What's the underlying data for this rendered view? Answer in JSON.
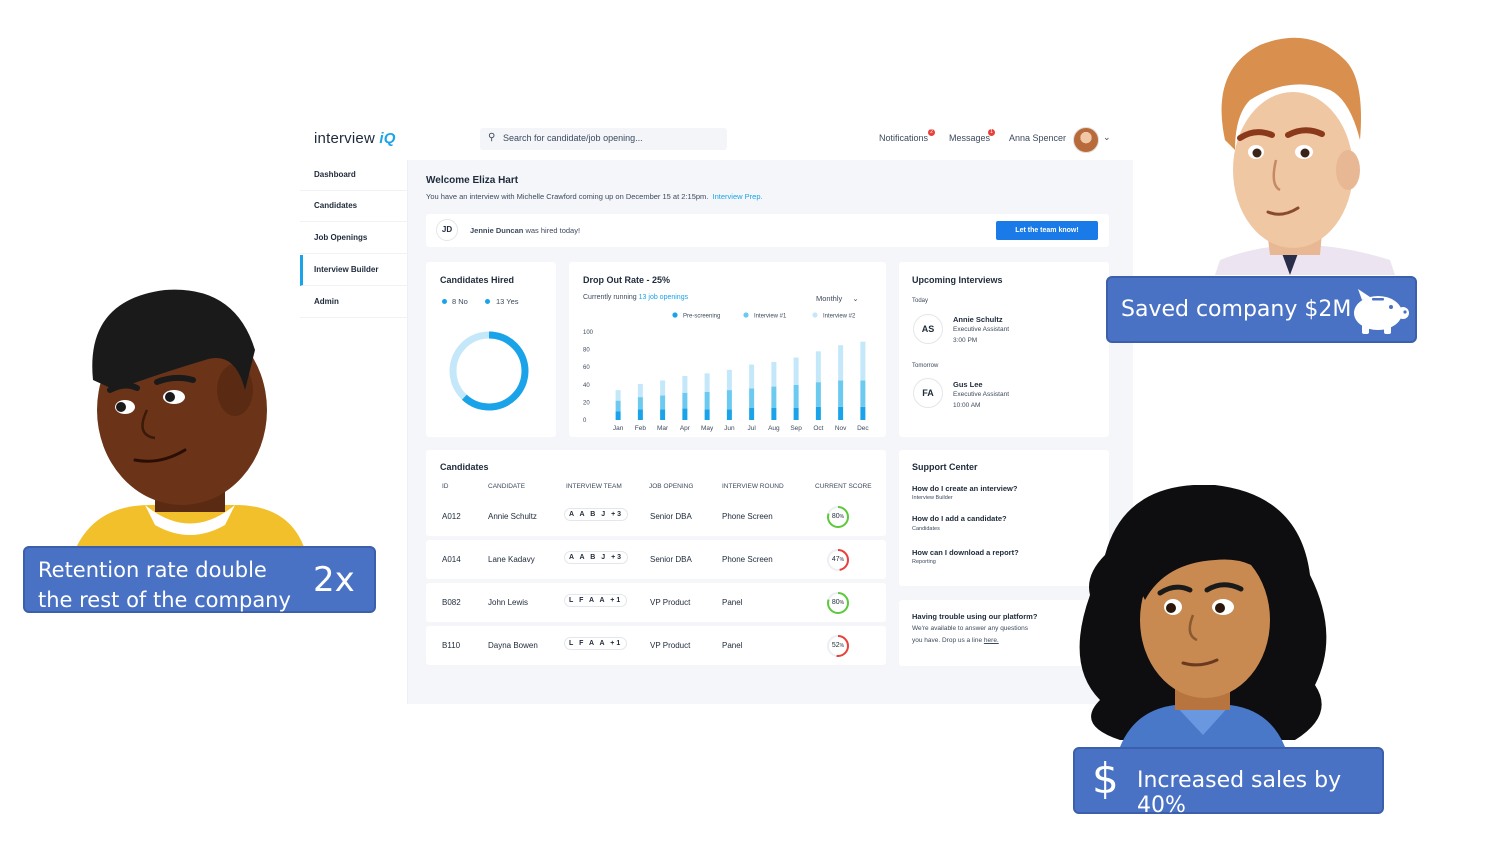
{
  "app": {
    "logo_text": "interview",
    "logo_accent": "iQ",
    "search_placeholder": "Search for candidate/job opening...",
    "notifications_label": "Notifications",
    "notifications_count": "2",
    "messages_label": "Messages",
    "messages_count": "1",
    "user_name": "Anna Spencer"
  },
  "sidebar": {
    "items": [
      {
        "label": "Dashboard",
        "active": false
      },
      {
        "label": "Candidates",
        "active": false
      },
      {
        "label": "Job Openings",
        "active": false
      },
      {
        "label": "Interview Builder",
        "active": true
      },
      {
        "label": "Admin",
        "active": false
      }
    ]
  },
  "welcome": {
    "title": "Welcome Eliza Hart",
    "message": "You have an interview with Michelle Crawford coming up on December 15 at 2:15pm.",
    "link": "Interview Prep."
  },
  "hired_banner": {
    "initials": "JD",
    "name": "Jennie Duncan",
    "text": "was hired today!",
    "button": "Let the team know!"
  },
  "candidates_hired": {
    "title": "Candidates Hired",
    "legend_no": "8 No",
    "legend_yes": "13 Yes",
    "no": 8,
    "yes": 13
  },
  "dropout": {
    "title": "Drop Out Rate - 25%",
    "subtitle_prefix": "Currently running",
    "subtitle_link": "13 job openings",
    "period": "Monthly"
  },
  "chart_data": {
    "type": "bar",
    "categories": [
      "Jan",
      "Feb",
      "Mar",
      "Apr",
      "May",
      "Jun",
      "Jul",
      "Aug",
      "Sep",
      "Oct",
      "Nov",
      "Dec"
    ],
    "series": [
      {
        "name": "Pre-screening",
        "values": [
          10,
          12,
          12,
          13,
          12,
          12,
          14,
          14,
          14,
          15,
          15,
          15
        ]
      },
      {
        "name": "Interview #1",
        "values": [
          12,
          14,
          16,
          18,
          20,
          22,
          22,
          24,
          26,
          28,
          30,
          30
        ]
      },
      {
        "name": "Interview #2",
        "values": [
          12,
          15,
          17,
          19,
          21,
          23,
          27,
          28,
          31,
          35,
          40,
          44
        ]
      }
    ],
    "yticks": [
      0,
      20,
      40,
      60,
      80,
      100
    ],
    "ylim": [
      0,
      100
    ],
    "stacked": true,
    "colors": [
      "#1aa3e8",
      "#6ccaf0",
      "#c4e8f9"
    ]
  },
  "upcoming": {
    "title": "Upcoming Interviews",
    "groups": [
      {
        "day": "Today",
        "initials": "AS",
        "name": "Annie Schultz",
        "role": "Executive Assistant",
        "time": "3:00 PM"
      },
      {
        "day": "Tomorrow",
        "initials": "FA",
        "name": "Gus Lee",
        "role": "Executive Assistant",
        "time": "10:00 AM"
      }
    ]
  },
  "candidates_table": {
    "title": "Candidates",
    "headers": [
      "ID",
      "CANDIDATE",
      "INTERVIEW TEAM",
      "JOB OPENING",
      "INTERVIEW ROUND",
      "CURRENT SCORE"
    ],
    "rows": [
      {
        "id": "A012",
        "candidate": "Annie Schultz",
        "team": "A A B J",
        "extra": "+3",
        "job": "Senior DBA",
        "round": "Phone Screen",
        "score": "80",
        "score_value": 80,
        "color": "#5cc93a"
      },
      {
        "id": "A014",
        "candidate": "Lane Kadavy",
        "team": "A A B J",
        "extra": "+3",
        "job": "Senior DBA",
        "round": "Phone Screen",
        "score": "47",
        "score_value": 47,
        "color": "#e8403a"
      },
      {
        "id": "B082",
        "candidate": "John Lewis",
        "team": "L F A A",
        "extra": "+1",
        "job": "VP Product",
        "round": "Panel",
        "score": "80",
        "score_value": 80,
        "color": "#5cc93a"
      },
      {
        "id": "B110",
        "candidate": "Dayna Bowen",
        "team": "L F A A",
        "extra": "+1",
        "job": "VP Product",
        "round": "Panel",
        "score": "52",
        "score_value": 52,
        "color": "#e8403a"
      }
    ]
  },
  "support": {
    "title": "Support Center",
    "items": [
      {
        "q": "How do I create an interview?",
        "cat": "Interview Builder"
      },
      {
        "q": "How do I add a candidate?",
        "cat": "Candidates"
      },
      {
        "q": "How can I download a report?",
        "cat": "Reporting"
      }
    ]
  },
  "trouble": {
    "title": "Having trouble using our platform?",
    "line1": "We're available to answer any questions",
    "line2": "you have.  Drop us a line",
    "link": "here."
  },
  "callouts": {
    "saved": "Saved company $2M",
    "retention_line1": "Retention rate double",
    "retention_line2": "the rest of the company",
    "retention_value": "2x",
    "sales": "Increased sales by 40%",
    "dollar": "$"
  }
}
